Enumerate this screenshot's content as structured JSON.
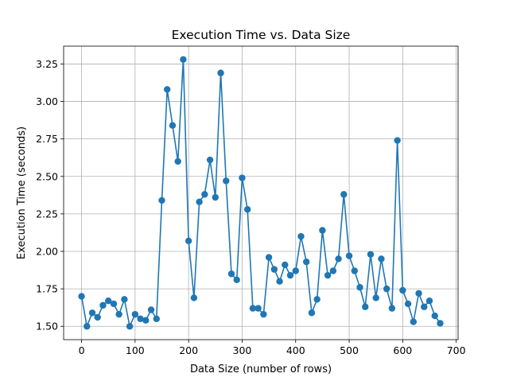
{
  "chart_data": {
    "type": "line",
    "title": "Execution Time vs. Data Size",
    "xlabel": "Data Size (number of rows)",
    "ylabel": "Execution Time (seconds)",
    "xlim": [
      -33.5,
      703.5
    ],
    "ylim": [
      1.411,
      3.369
    ],
    "x_ticks": [
      0,
      100,
      200,
      300,
      400,
      500,
      600,
      700
    ],
    "x_tick_labels": [
      "0",
      "100",
      "200",
      "300",
      "400",
      "500",
      "600",
      "700"
    ],
    "y_ticks": [
      1.5,
      1.75,
      2.0,
      2.25,
      2.5,
      2.75,
      3.0,
      3.25
    ],
    "y_tick_labels": [
      "1.50",
      "1.75",
      "2.00",
      "2.25",
      "2.50",
      "2.75",
      "3.00",
      "3.25"
    ],
    "grid": true,
    "marker": "circle",
    "color": "#1f77b4",
    "series": [
      {
        "x": [
          0,
          10,
          20,
          30,
          40,
          50,
          60,
          70,
          80,
          90,
          100,
          110,
          120,
          130,
          140,
          150,
          160,
          170,
          180,
          190,
          200,
          210,
          220,
          230,
          240,
          250,
          260,
          270,
          280,
          290,
          300,
          310,
          320,
          330,
          340,
          350,
          360,
          370,
          380,
          390,
          400,
          410,
          420,
          430,
          440,
          450,
          460,
          470,
          480,
          490,
          500,
          510,
          520,
          530,
          540,
          550,
          560,
          570,
          580,
          590,
          600,
          610,
          620,
          630,
          640,
          650,
          660,
          670
        ],
        "y": [
          1.7,
          1.5,
          1.59,
          1.56,
          1.64,
          1.67,
          1.65,
          1.58,
          1.68,
          1.5,
          1.58,
          1.55,
          1.54,
          1.61,
          1.55,
          2.34,
          3.08,
          2.84,
          2.6,
          3.28,
          2.07,
          1.69,
          2.33,
          2.38,
          2.61,
          2.36,
          3.19,
          2.47,
          1.85,
          1.81,
          2.49,
          2.28,
          1.62,
          1.62,
          1.58,
          1.96,
          1.88,
          1.8,
          1.91,
          1.84,
          1.87,
          2.1,
          1.93,
          1.59,
          1.68,
          2.14,
          1.84,
          1.87,
          1.95,
          2.38,
          1.97,
          1.87,
          1.76,
          1.63,
          1.98,
          1.69,
          1.95,
          1.75,
          1.62,
          2.74,
          1.74,
          1.65,
          1.53,
          1.72,
          1.63,
          1.67,
          1.57,
          1.52
        ]
      }
    ]
  }
}
